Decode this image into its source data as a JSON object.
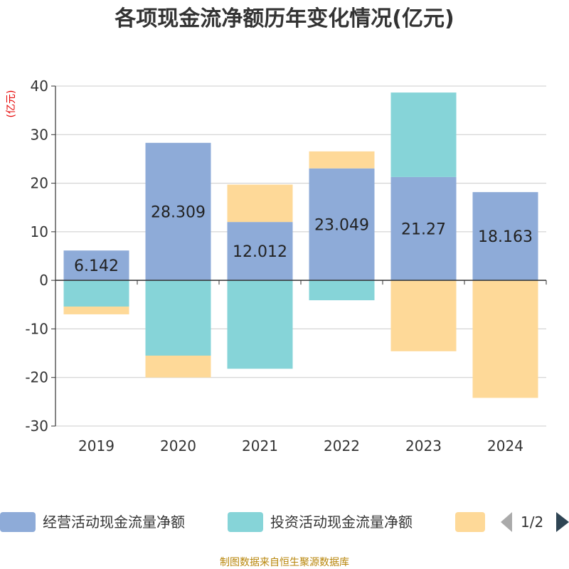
{
  "chart_data": {
    "type": "bar",
    "stacked": true,
    "title": "各项现金流净额历年变化情况(亿元)",
    "unit_label": "(亿元)",
    "categories": [
      "2019",
      "2020",
      "2021",
      "2022",
      "2023",
      "2024"
    ],
    "series": [
      {
        "name": "经营活动现金流量净额",
        "values": [
          6.142,
          28.309,
          12.012,
          23.049,
          21.27,
          18.163
        ],
        "color": "#8eabd8",
        "show_labels": true
      },
      {
        "name": "投资活动现金流量净额",
        "values": [
          -5.4,
          -15.5,
          -18.2,
          -4.1,
          17.4,
          0
        ],
        "color": "#86d4d8",
        "show_labels": false
      },
      {
        "name": "",
        "values": [
          -1.6,
          -4.5,
          7.7,
          3.5,
          -14.6,
          -24.2
        ],
        "color": "#fed998",
        "show_labels": false
      }
    ],
    "ylim": [
      -30,
      40
    ],
    "yticks": [
      40,
      30,
      20,
      10,
      0,
      -10,
      -20,
      -30
    ],
    "grid": true,
    "legend": {
      "position": "bottom",
      "page": "1/2"
    },
    "source": "制图数据来自恒生聚源数据库"
  },
  "colors": {
    "axis": "#333333",
    "grid": "#cccccc",
    "pager_active": "#2f4554",
    "pager_inactive": "#aaaaaa"
  }
}
